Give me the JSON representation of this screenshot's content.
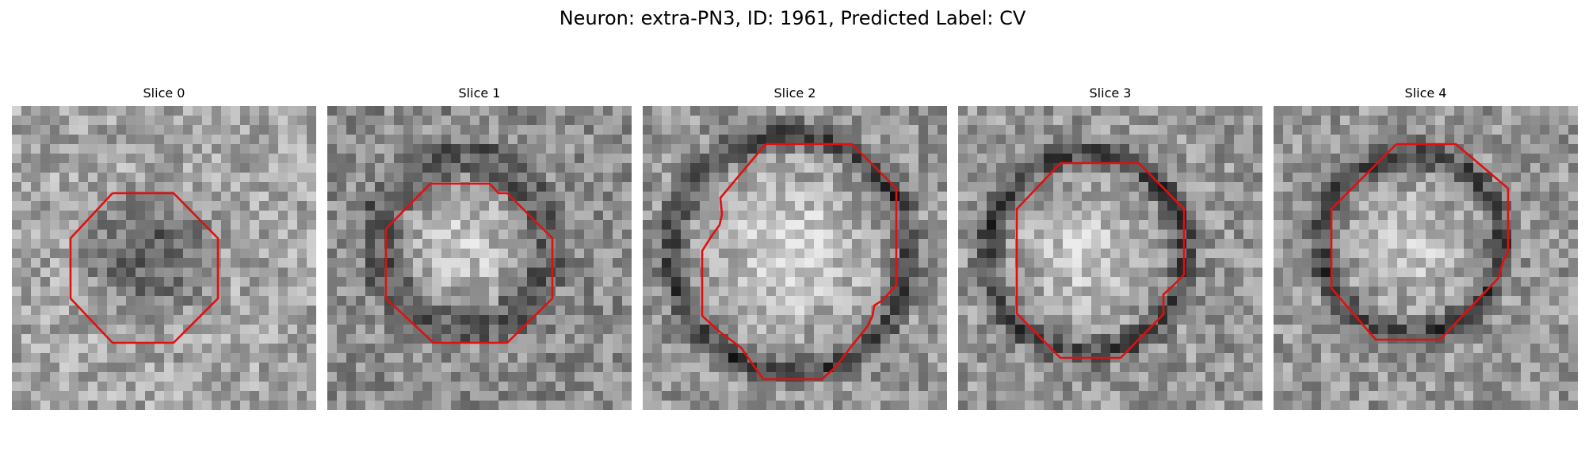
{
  "figure": {
    "title": "Neuron: extra-PN3, ID: 1961, Predicted Label: CV"
  },
  "colors": {
    "outline": "#e01010",
    "background": "#ffffff"
  },
  "panels": [
    {
      "title": "Slice 0",
      "pattern": "dark-center"
    },
    {
      "title": "Slice 1",
      "pattern": "light-center"
    },
    {
      "title": "Slice 2",
      "pattern": "light-center-ring"
    },
    {
      "title": "Slice 3",
      "pattern": "light-center-ring"
    },
    {
      "title": "Slice 4",
      "pattern": "light-center-ring"
    }
  ]
}
